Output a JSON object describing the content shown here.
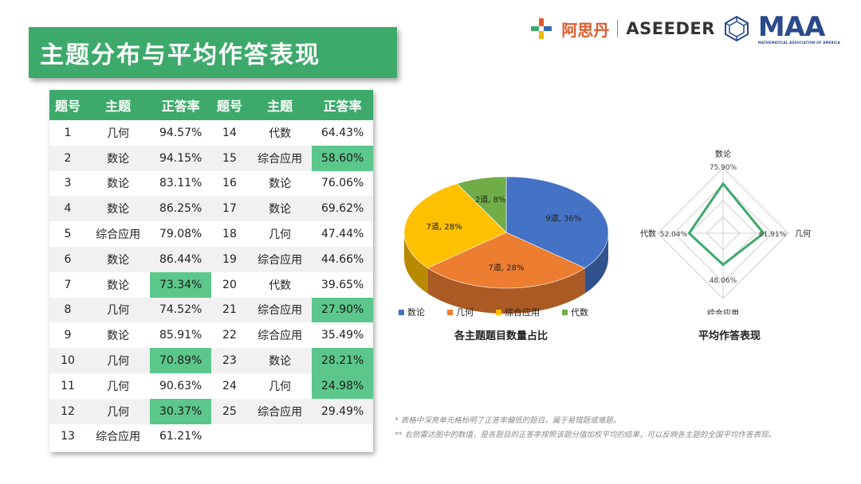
{
  "title": "主题分布与平均作答表现",
  "logos": {
    "aseeder_cn": "阿思丹",
    "aseeder_en": "ASEEDER",
    "maa": "MAA",
    "maa_sub": "MATHEMATICAL ASSOCIATION OF AMERICA"
  },
  "table": {
    "headers": [
      "题号",
      "主题",
      "正答率",
      "题号",
      "主题",
      "正答率"
    ],
    "rows": [
      {
        "n1": "1",
        "t1": "几何",
        "r1": "94.57%",
        "n2": "14",
        "t2": "代数",
        "r2": "64.43%",
        "hl1": false,
        "hl2": false
      },
      {
        "n1": "2",
        "t1": "数论",
        "r1": "94.15%",
        "n2": "15",
        "t2": "综合应用",
        "r2": "58.60%",
        "hl1": false,
        "hl2": true
      },
      {
        "n1": "3",
        "t1": "数论",
        "r1": "83.11%",
        "n2": "16",
        "t2": "数论",
        "r2": "76.06%",
        "hl1": false,
        "hl2": false
      },
      {
        "n1": "4",
        "t1": "数论",
        "r1": "86.25%",
        "n2": "17",
        "t2": "数论",
        "r2": "69.62%",
        "hl1": false,
        "hl2": false
      },
      {
        "n1": "5",
        "t1": "综合应用",
        "r1": "79.08%",
        "n2": "18",
        "t2": "几何",
        "r2": "47.44%",
        "hl1": false,
        "hl2": false
      },
      {
        "n1": "6",
        "t1": "数论",
        "r1": "86.44%",
        "n2": "19",
        "t2": "综合应用",
        "r2": "44.66%",
        "hl1": false,
        "hl2": false
      },
      {
        "n1": "7",
        "t1": "数论",
        "r1": "73.34%",
        "n2": "20",
        "t2": "代数",
        "r2": "39.65%",
        "hl1": true,
        "hl2": false
      },
      {
        "n1": "8",
        "t1": "几何",
        "r1": "74.52%",
        "n2": "21",
        "t2": "综合应用",
        "r2": "27.90%",
        "hl1": false,
        "hl2": true
      },
      {
        "n1": "9",
        "t1": "数论",
        "r1": "85.91%",
        "n2": "22",
        "t2": "综合应用",
        "r2": "35.49%",
        "hl1": false,
        "hl2": false
      },
      {
        "n1": "10",
        "t1": "几何",
        "r1": "70.89%",
        "n2": "23",
        "t2": "数论",
        "r2": "28.21%",
        "hl1": true,
        "hl2": true
      },
      {
        "n1": "11",
        "t1": "几何",
        "r1": "90.63%",
        "n2": "24",
        "t2": "几何",
        "r2": "24.98%",
        "hl1": false,
        "hl2": true
      },
      {
        "n1": "12",
        "t1": "几何",
        "r1": "30.37%",
        "n2": "25",
        "t2": "综合应用",
        "r2": "29.49%",
        "hl1": true,
        "hl2": false
      },
      {
        "n1": "13",
        "t1": "综合应用",
        "r1": "61.21%",
        "n2": "",
        "t2": "",
        "r2": "",
        "hl1": false,
        "hl2": false
      }
    ]
  },
  "pie": {
    "caption": "各主题题目数量占比",
    "slices": [
      {
        "name": "数论",
        "label": "9道, 36%",
        "value": 36,
        "color": "#4472c4"
      },
      {
        "name": "几何",
        "label": "7道, 28%",
        "value": 28,
        "color": "#ed7d31"
      },
      {
        "name": "综合应用",
        "label": "7道, 28%",
        "value": 28,
        "color": "#ffc000"
      },
      {
        "name": "代数",
        "label": "2道, 8%",
        "value": 8,
        "color": "#70ad47"
      }
    ]
  },
  "radar": {
    "caption": "平均作答表现",
    "axes": [
      {
        "name": "数论",
        "value": 75.9,
        "label": "75.90%"
      },
      {
        "name": "几何",
        "value": 61.91,
        "label": "61.91%"
      },
      {
        "name": "综合应用",
        "value": 48.06,
        "label": "48.06%"
      },
      {
        "name": "代数",
        "value": 52.04,
        "label": "52.04%"
      }
    ],
    "max": 100,
    "color": "#3daa6b"
  },
  "footnotes": [
    "* 表格中深亮单元格标明了正答率偏低的题目，属于易错题或难题。",
    "** 右侧雷达图中的数值，是各题目的正答率按照该题分值加权平均的结果，可以反映各主题的全国平均作答表现。"
  ]
}
